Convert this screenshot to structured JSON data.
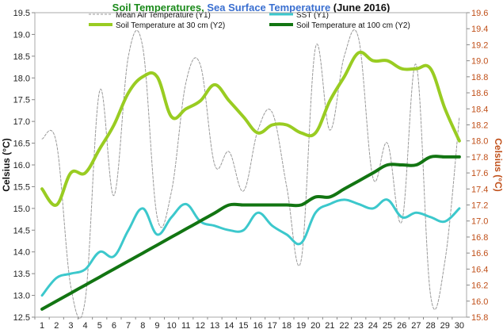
{
  "chart_data": {
    "type": "line",
    "title_parts": [
      {
        "text": "Soil Temperatures, ",
        "color": "#1a8a1a"
      },
      {
        "text": "Sea Surface Temperature",
        "color": "#3a6fd0"
      },
      {
        "text": " (June 2016)",
        "color": "#111111"
      }
    ],
    "ylabel_left": "Celsius (°C)",
    "ylabel_right": "Celsius (°C)",
    "y1lim": [
      12.5,
      19.5
    ],
    "y1ticks": [
      "12.5",
      "13.0",
      "13.5",
      "14.0",
      "14.5",
      "15.0",
      "15.5",
      "16.0",
      "16.5",
      "17.0",
      "17.5",
      "18.0",
      "18.5",
      "19.0",
      "19.5"
    ],
    "y2lim": [
      15.8,
      19.6
    ],
    "y2ticks": [
      "15.8",
      "16.0",
      "16.2",
      "16.4",
      "16.6",
      "16.8",
      "17.0",
      "17.2",
      "17.4",
      "17.6",
      "17.8",
      "18.0",
      "18.2",
      "18.4",
      "18.6",
      "18.8",
      "19.0",
      "19.2",
      "19.4",
      "19.6"
    ],
    "x": [
      "1",
      "2",
      "3",
      "4",
      "5",
      "6",
      "7",
      "8",
      "9",
      "10",
      "11",
      "12",
      "13",
      "14",
      "15",
      "16",
      "17",
      "18",
      "19",
      "20",
      "21",
      "22",
      "23",
      "24",
      "25",
      "26",
      "27",
      "28",
      "29",
      "30"
    ],
    "grid": false,
    "legend_placement": "top",
    "series": [
      {
        "name": "Mean Air Temperature (Y1)",
        "axis": "y1",
        "color": "#999999",
        "style": "dashed",
        "width": 1,
        "values": [
          16.6,
          16.5,
          13.2,
          12.9,
          17.7,
          15.3,
          18.5,
          18.7,
          14.8,
          15.4,
          17.9,
          18.3,
          16.0,
          16.3,
          15.4,
          16.8,
          17.2,
          15.5,
          13.8,
          18.7,
          16.8,
          18.5,
          18.9,
          15.7,
          16.5,
          14.7,
          18.3,
          13.0,
          13.8,
          17.1
        ]
      },
      {
        "name": "SST (Y1)",
        "axis": "y1",
        "color": "#3cc8cc",
        "style": "solid",
        "width": 3,
        "values": [
          13.0,
          13.4,
          13.5,
          13.6,
          14.0,
          13.9,
          14.5,
          15.0,
          14.4,
          14.8,
          15.1,
          14.7,
          14.6,
          14.5,
          14.5,
          14.9,
          14.6,
          14.4,
          14.2,
          14.9,
          15.1,
          15.2,
          15.1,
          15.0,
          15.2,
          14.8,
          14.9,
          14.8,
          14.7,
          15.0
        ]
      },
      {
        "name": "Soil Temperature at 30 cm (Y2)",
        "axis": "y2",
        "color": "#99cc22",
        "style": "solid",
        "width": 4,
        "values": [
          17.4,
          17.2,
          17.6,
          17.6,
          17.9,
          18.2,
          18.6,
          18.8,
          18.8,
          18.3,
          18.4,
          18.5,
          18.7,
          18.5,
          18.3,
          18.1,
          18.2,
          18.2,
          18.1,
          18.1,
          18.5,
          18.8,
          19.1,
          19.0,
          19.0,
          18.9,
          18.9,
          18.9,
          18.4,
          18.0
        ]
      },
      {
        "name": "Soil Temperature at 100 cm (Y2)",
        "axis": "y2",
        "color": "#127512",
        "style": "solid",
        "width": 4,
        "values": [
          15.9,
          16.0,
          16.1,
          16.2,
          16.3,
          16.4,
          16.5,
          16.6,
          16.7,
          16.8,
          16.9,
          17.0,
          17.1,
          17.2,
          17.2,
          17.2,
          17.2,
          17.2,
          17.2,
          17.3,
          17.3,
          17.4,
          17.5,
          17.6,
          17.7,
          17.7,
          17.7,
          17.8,
          17.8,
          17.8
        ]
      }
    ]
  }
}
